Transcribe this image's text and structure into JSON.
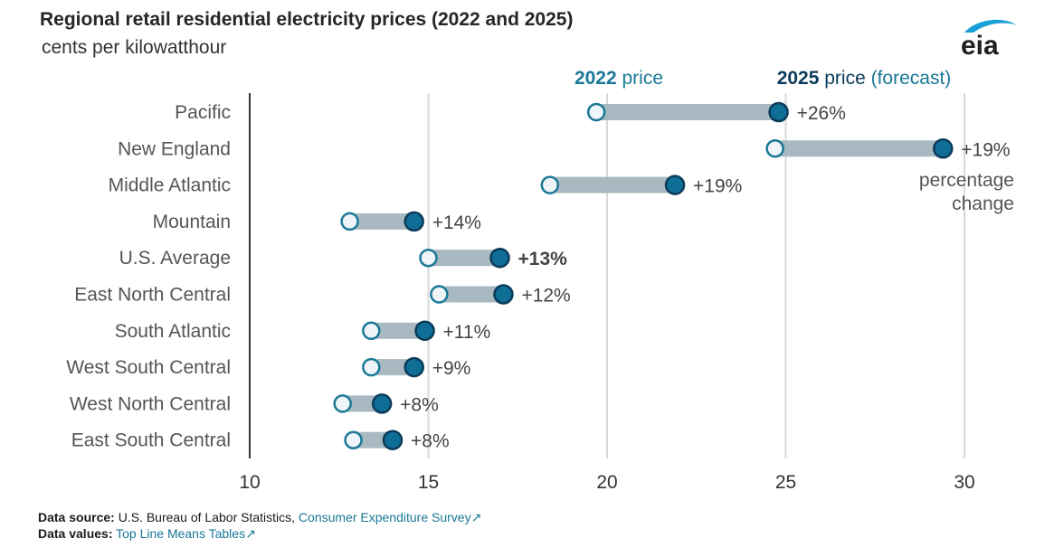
{
  "header": {
    "title": "Regional retail residential electricity prices (2022 and 2025)",
    "subtitle": "cents per kilowatthour",
    "logo_text": "eia"
  },
  "chart_data": {
    "type": "dumbbell",
    "xlim": [
      10,
      30
    ],
    "xticks": [
      10,
      15,
      20,
      25,
      30
    ],
    "grid": true,
    "legend": {
      "price_2022_year": "2022",
      "price_2022_word": " price",
      "price_2025_year": "2025",
      "price_2025_word": " price",
      "price_2025_note": " (forecast)",
      "pct_line1": "percentage",
      "pct_line2": "change"
    },
    "rows": [
      {
        "region": "Pacific",
        "p2022": 19.7,
        "p2025": 24.8,
        "change": "+26%",
        "bold": false
      },
      {
        "region": "New England",
        "p2022": 24.7,
        "p2025": 29.4,
        "change": "+19%",
        "bold": false
      },
      {
        "region": "Middle Atlantic",
        "p2022": 18.4,
        "p2025": 21.9,
        "change": "+19%",
        "bold": false
      },
      {
        "region": "Mountain",
        "p2022": 12.8,
        "p2025": 14.6,
        "change": "+14%",
        "bold": false
      },
      {
        "region": "U.S. Average",
        "p2022": 15.0,
        "p2025": 17.0,
        "change": "+13%",
        "bold": true
      },
      {
        "region": "East North Central",
        "p2022": 15.3,
        "p2025": 17.1,
        "change": "+12%",
        "bold": false
      },
      {
        "region": "South Atlantic",
        "p2022": 13.4,
        "p2025": 14.9,
        "change": "+11%",
        "bold": false
      },
      {
        "region": "West South Central",
        "p2022": 13.4,
        "p2025": 14.6,
        "change": "+9%",
        "bold": false
      },
      {
        "region": "West North Central",
        "p2022": 12.6,
        "p2025": 13.7,
        "change": "+8%",
        "bold": false
      },
      {
        "region": "East South Central",
        "p2022": 12.9,
        "p2025": 14.0,
        "change": "+8%",
        "bold": false
      }
    ],
    "colors": {
      "dot_2022_fill": "#eef4f7",
      "dot_2022_stroke": "#1a7896",
      "dot_2025_fill": "#0f6e96",
      "dot_2025_stroke": "#0b3b59",
      "bar": "#a9b9c2",
      "grid": "#d9d9d9",
      "axis": "#333333",
      "legend_2022": "#1a7896",
      "legend_2025": "#0b3b59"
    }
  },
  "footer": {
    "source_label": "Data source:",
    "source_text": " U.S. Bureau of Labor Statistics, ",
    "source_link": "Consumer Expenditure Survey",
    "values_label": "Data values:",
    "values_link": "Top Line Means Tables",
    "link_icon": "↗"
  }
}
